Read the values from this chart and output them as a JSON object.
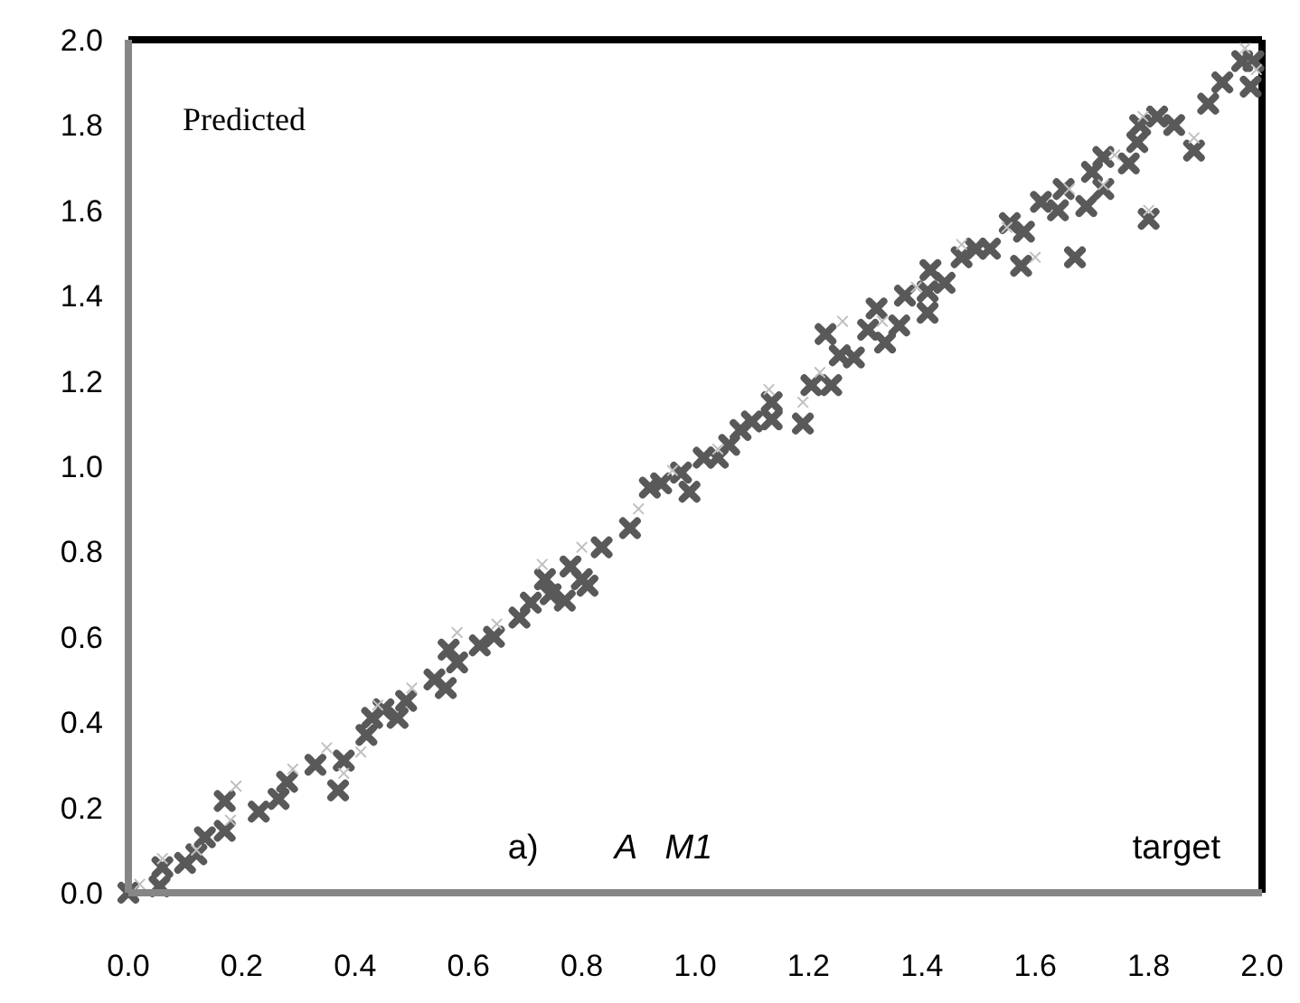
{
  "chart_data": {
    "type": "scatter",
    "xlabel": "target",
    "ylabel": "Predicted",
    "annotations": [
      "a)",
      "A   M1"
    ],
    "xlim": [
      0,
      2
    ],
    "ylim": [
      0,
      2
    ],
    "xticks": [
      {
        "value": 0,
        "label": "0.0"
      },
      {
        "value": 0.2,
        "label": "0.2"
      },
      {
        "value": 0.4,
        "label": "0.4"
      },
      {
        "value": 0.6,
        "label": "0.6"
      },
      {
        "value": 0.8,
        "label": "0.8"
      },
      {
        "value": 1,
        "label": "1.0"
      },
      {
        "value": 1.2,
        "label": "1.2"
      },
      {
        "value": 1.4,
        "label": "1.4"
      },
      {
        "value": 1.6,
        "label": "1.6"
      },
      {
        "value": 1.8,
        "label": "1.8"
      },
      {
        "value": 2,
        "label": "2.0"
      }
    ],
    "yticks": [
      {
        "value": 0,
        "label": "0.0"
      },
      {
        "value": 0.2,
        "label": "0.2"
      },
      {
        "value": 0.4,
        "label": "0.4"
      },
      {
        "value": 0.6,
        "label": "0.6"
      },
      {
        "value": 0.8,
        "label": "0.8"
      },
      {
        "value": 1,
        "label": "1.0"
      },
      {
        "value": 1.2,
        "label": "1.2"
      },
      {
        "value": 1.4,
        "label": "1.4"
      },
      {
        "value": 1.6,
        "label": "1.6"
      },
      {
        "value": 1.8,
        "label": "1.8"
      },
      {
        "value": 2,
        "label": "2.0"
      }
    ],
    "grid": false,
    "marker": "cross",
    "series": [
      {
        "color": "#c0c0c0",
        "x": [
          0.02,
          0.06,
          0.12,
          0.18,
          0.19,
          0.29,
          0.35,
          0.38,
          0.41,
          0.44,
          0.5,
          0.58,
          0.65,
          0.73,
          0.8,
          0.9,
          0.96,
          1.04,
          1.13,
          1.19,
          1.22,
          1.26,
          1.33,
          1.39,
          1.47,
          1.55,
          1.6,
          1.66,
          1.72,
          1.8,
          1.74,
          1.79,
          1.88,
          1.97,
          1.99
        ],
        "values": [
          0.02,
          0.08,
          0.1,
          0.17,
          0.25,
          0.29,
          0.34,
          0.28,
          0.33,
          0.44,
          0.48,
          0.61,
          0.63,
          0.77,
          0.81,
          0.9,
          0.99,
          1.04,
          1.18,
          1.15,
          1.22,
          1.34,
          1.34,
          1.42,
          1.52,
          1.56,
          1.49,
          1.65,
          1.66,
          1.6,
          1.73,
          1.82,
          1.77,
          1.98,
          1.93
        ]
      },
      {
        "color": "#595959",
        "x": [
          0,
          0.055,
          0.06,
          0.1,
          0.12,
          0.135,
          0.17,
          0.17,
          0.23,
          0.265,
          0.28,
          0.33,
          0.37,
          0.38,
          0.42,
          0.43,
          0.45,
          0.475,
          0.49,
          0.54,
          0.56,
          0.565,
          0.58,
          0.62,
          0.645,
          0.69,
          0.71,
          0.735,
          0.745,
          0.77,
          0.78,
          0.8,
          0.81,
          0.835,
          0.885,
          0.92,
          0.94,
          0.975,
          0.99,
          1.015,
          1.04,
          1.06,
          1.08,
          1.1,
          1.135,
          1.135,
          1.19,
          1.205,
          1.24,
          1.255,
          1.23,
          1.28,
          1.305,
          1.32,
          1.335,
          1.36,
          1.37,
          1.41,
          1.41,
          1.415,
          1.44,
          1.47,
          1.495,
          1.52,
          1.555,
          1.575,
          1.58,
          1.61,
          1.64,
          1.65,
          1.67,
          1.69,
          1.7,
          1.72,
          1.72,
          1.765,
          1.78,
          1.785,
          1.8,
          1.815,
          1.845,
          1.88,
          1.905,
          1.93,
          1.965,
          1.985,
          1.98
        ],
        "values": [
          0,
          0.015,
          0.06,
          0.07,
          0.09,
          0.13,
          0.145,
          0.215,
          0.19,
          0.22,
          0.26,
          0.3,
          0.24,
          0.31,
          0.37,
          0.41,
          0.43,
          0.41,
          0.45,
          0.5,
          0.48,
          0.57,
          0.54,
          0.58,
          0.6,
          0.645,
          0.68,
          0.735,
          0.7,
          0.685,
          0.765,
          0.735,
          0.72,
          0.81,
          0.855,
          0.95,
          0.96,
          0.985,
          0.94,
          1.02,
          1.02,
          1.05,
          1.085,
          1.105,
          1.15,
          1.11,
          1.1,
          1.19,
          1.19,
          1.26,
          1.31,
          1.255,
          1.32,
          1.37,
          1.29,
          1.33,
          1.4,
          1.36,
          1.41,
          1.46,
          1.43,
          1.49,
          1.51,
          1.51,
          1.57,
          1.47,
          1.55,
          1.62,
          1.6,
          1.65,
          1.49,
          1.61,
          1.69,
          1.725,
          1.65,
          1.71,
          1.76,
          1.8,
          1.58,
          1.82,
          1.8,
          1.74,
          1.85,
          1.9,
          1.95,
          1.95,
          1.89
        ]
      }
    ]
  }
}
